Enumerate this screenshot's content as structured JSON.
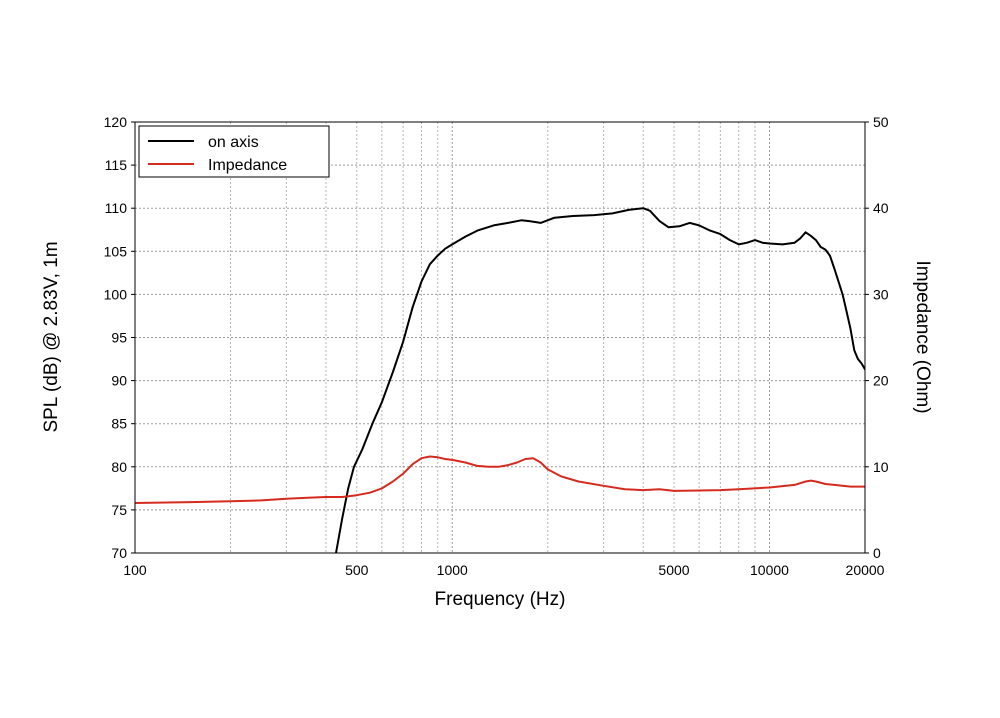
{
  "chart_data": {
    "type": "line",
    "xlabel": "Frequency (Hz)",
    "ylabel": "SPL (dB) @ 2.83V, 1m",
    "y2label": "Impedance (Ohm)",
    "x_scale": "log",
    "xlim": [
      100,
      20000
    ],
    "ylim": [
      70,
      120
    ],
    "y2lim": [
      0,
      50
    ],
    "x_ticks": [
      100,
      500,
      1000,
      5000,
      10000,
      20000
    ],
    "x_tick_labels": [
      "100",
      "500",
      "1000",
      "5000",
      "10000",
      "20000"
    ],
    "y_ticks": [
      70,
      75,
      80,
      85,
      90,
      95,
      100,
      105,
      110,
      115,
      120
    ],
    "y_tick_labels": [
      "70",
      "75",
      "80",
      "85",
      "90",
      "95",
      "100",
      "105",
      "110",
      "115",
      "120"
    ],
    "y2_ticks": [
      0,
      10,
      20,
      30,
      40,
      50
    ],
    "y2_tick_labels": [
      "0",
      "10",
      "20",
      "30",
      "40",
      "50"
    ],
    "grid": true,
    "legend_position": "top-left",
    "series": [
      {
        "name": "on axis",
        "axis": "left",
        "color": "#000000",
        "x": [
          430,
          450,
          470,
          490,
          520,
          560,
          600,
          650,
          700,
          750,
          800,
          850,
          900,
          950,
          1000,
          1100,
          1200,
          1350,
          1500,
          1650,
          1750,
          1900,
          2100,
          2400,
          2800,
          3200,
          3600,
          4000,
          4200,
          4500,
          4800,
          5200,
          5600,
          6000,
          6500,
          7000,
          7500,
          8000,
          8500,
          9000,
          9500,
          10000,
          11000,
          12000,
          12500,
          13000,
          13500,
          14000,
          14500,
          15000,
          15500,
          16000,
          16500,
          17000,
          17500,
          18000,
          18500,
          19000,
          19500,
          20000
        ],
        "values": [
          70,
          74,
          77.5,
          80,
          82,
          85,
          87.5,
          91,
          94.5,
          98.5,
          101.5,
          103.5,
          104.5,
          105.3,
          105.8,
          106.7,
          107.4,
          108,
          108.3,
          108.6,
          108.5,
          108.3,
          108.9,
          109.1,
          109.2,
          109.4,
          109.8,
          110,
          109.7,
          108.5,
          107.8,
          107.9,
          108.3,
          108,
          107.4,
          107,
          106.3,
          105.8,
          106,
          106.3,
          106,
          105.9,
          105.8,
          106,
          106.5,
          107.2,
          106.8,
          106.3,
          105.5,
          105.2,
          104.5,
          103,
          101.5,
          100,
          98,
          96,
          93.5,
          92.5,
          92,
          91.3
        ]
      },
      {
        "name": "Impedance",
        "axis": "right",
        "color": "#d42b1e",
        "x": [
          100,
          150,
          200,
          250,
          300,
          350,
          400,
          450,
          500,
          550,
          600,
          650,
          700,
          750,
          800,
          850,
          900,
          950,
          1000,
          1100,
          1200,
          1300,
          1400,
          1500,
          1600,
          1700,
          1800,
          1900,
          2000,
          2200,
          2500,
          3000,
          3500,
          4000,
          4500,
          5000,
          6000,
          7000,
          8000,
          10000,
          12000,
          13000,
          13500,
          14000,
          15000,
          16000,
          18000,
          20000
        ],
        "values": [
          5.8,
          5.9,
          6.0,
          6.1,
          6.3,
          6.4,
          6.5,
          6.5,
          6.7,
          7.0,
          7.5,
          8.3,
          9.2,
          10.3,
          11.0,
          11.2,
          11.1,
          10.9,
          10.8,
          10.5,
          10.1,
          10.0,
          10.0,
          10.2,
          10.5,
          10.9,
          11.0,
          10.5,
          9.7,
          8.9,
          8.3,
          7.8,
          7.4,
          7.3,
          7.4,
          7.2,
          7.25,
          7.3,
          7.4,
          7.6,
          7.9,
          8.3,
          8.4,
          8.3,
          8.0,
          7.9,
          7.7,
          7.7
        ]
      }
    ]
  }
}
